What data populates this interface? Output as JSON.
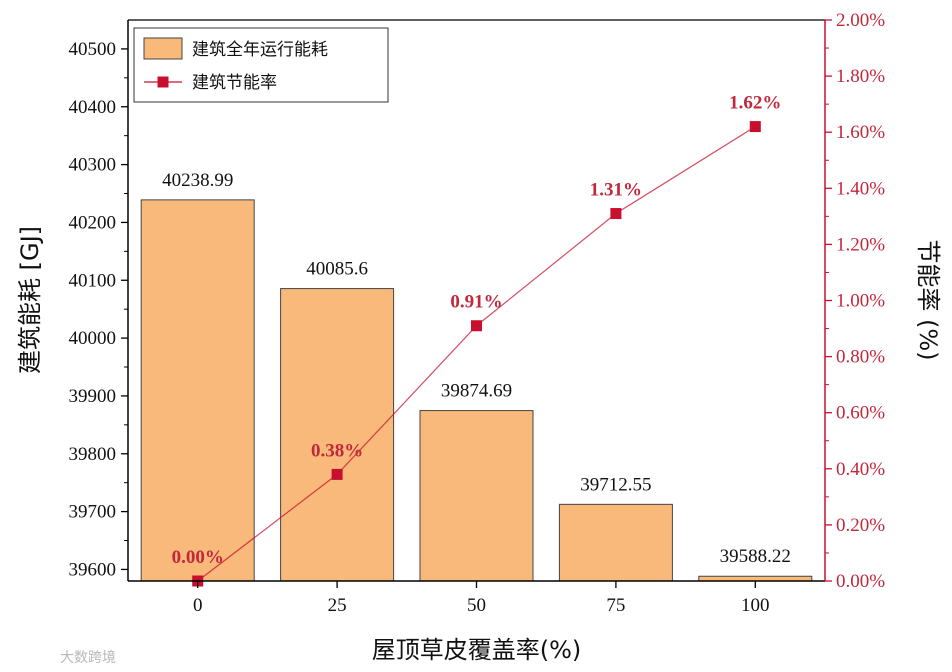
{
  "chart_data": {
    "type": "bar+line",
    "categories": [
      "0",
      "25",
      "50",
      "75",
      "100"
    ],
    "series": [
      {
        "name": "建筑全年运行能耗",
        "type": "bar",
        "axis": "left",
        "values": [
          40238.99,
          40085.6,
          39874.69,
          39712.55,
          39588.22
        ],
        "labels": [
          "40238.99",
          "40085.6",
          "39874.69",
          "39712.55",
          "39588.22"
        ],
        "color": "#f8b97a"
      },
      {
        "name": "建筑节能率",
        "type": "line",
        "axis": "right",
        "values": [
          0.0,
          0.38,
          0.91,
          1.31,
          1.62
        ],
        "labels": [
          "0.00%",
          "0.38%",
          "0.91%",
          "1.31%",
          "1.62%"
        ],
        "color": "#c8102e"
      }
    ],
    "xlabel": "屋顶草皮覆盖率(%)",
    "ylabel": "建筑能耗 [GJ]",
    "y2label": "节能率 (%)",
    "ylim": [
      39580,
      40550
    ],
    "y2lim": [
      0,
      2.0
    ],
    "yticks": [
      "39600",
      "39700",
      "39800",
      "39900",
      "40000",
      "40100",
      "40200",
      "40300",
      "40400",
      "40500"
    ],
    "y2ticks": [
      "0.00%",
      "0.20%",
      "0.40%",
      "0.60%",
      "0.80%",
      "1.00%",
      "1.20%",
      "1.40%",
      "1.60%",
      "1.80%",
      "2.00%"
    ],
    "legend_position": "top-left",
    "grid": false
  },
  "watermark": "大数跨境"
}
